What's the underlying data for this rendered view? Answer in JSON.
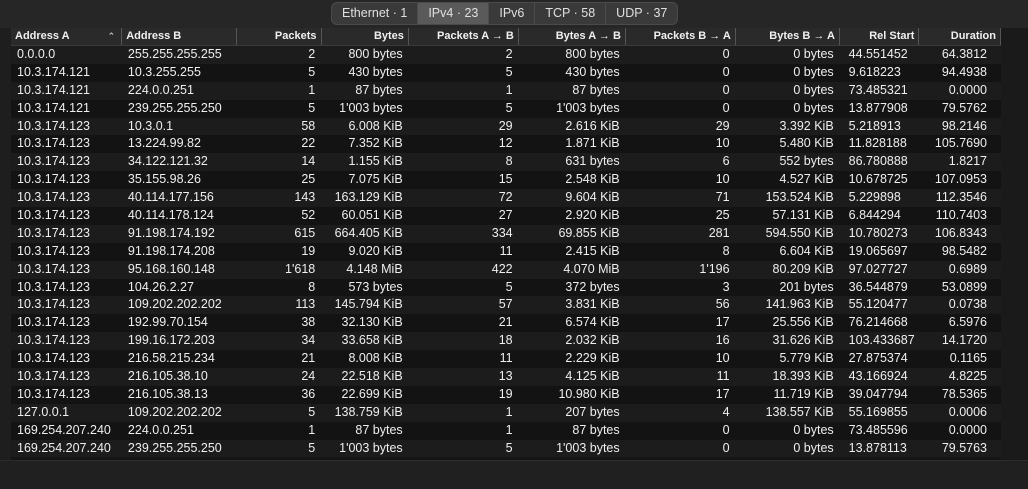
{
  "tabs": [
    {
      "label": "Ethernet · 1",
      "active": false
    },
    {
      "label": "IPv4 · 23",
      "active": true
    },
    {
      "label": "IPv6",
      "active": false
    },
    {
      "label": "TCP · 58",
      "active": false
    },
    {
      "label": "UDP · 37",
      "active": false
    }
  ],
  "sort_indicator": "⌃",
  "columns": [
    "Address A",
    "Address B",
    "Packets",
    "Bytes",
    "Packets A → B",
    "Bytes A → B",
    "Packets B → A",
    "Bytes B → A",
    "Rel Start",
    "Duration"
  ],
  "rows": [
    [
      "0.0.0.0",
      "255.255.255.255",
      "2",
      "800 bytes",
      "2",
      "800 bytes",
      "0",
      "0 bytes",
      "44.551452",
      "64.3812"
    ],
    [
      "10.3.174.121",
      "10.3.255.255",
      "5",
      "430 bytes",
      "5",
      "430 bytes",
      "0",
      "0 bytes",
      "9.618223",
      "94.4938"
    ],
    [
      "10.3.174.121",
      "224.0.0.251",
      "1",
      "87 bytes",
      "1",
      "87 bytes",
      "0",
      "0 bytes",
      "73.485321",
      "0.0000"
    ],
    [
      "10.3.174.121",
      "239.255.255.250",
      "5",
      "1'003 bytes",
      "5",
      "1'003 bytes",
      "0",
      "0 bytes",
      "13.877908",
      "79.5762"
    ],
    [
      "10.3.174.123",
      "10.3.0.1",
      "58",
      "6.008 KiB",
      "29",
      "2.616 KiB",
      "29",
      "3.392 KiB",
      "5.218913",
      "98.2146"
    ],
    [
      "10.3.174.123",
      "13.224.99.82",
      "22",
      "7.352 KiB",
      "12",
      "1.871 KiB",
      "10",
      "5.480 KiB",
      "11.828188",
      "105.7690"
    ],
    [
      "10.3.174.123",
      "34.122.121.32",
      "14",
      "1.155 KiB",
      "8",
      "631 bytes",
      "6",
      "552 bytes",
      "86.780888",
      "1.8217"
    ],
    [
      "10.3.174.123",
      "35.155.98.26",
      "25",
      "7.075 KiB",
      "15",
      "2.548 KiB",
      "10",
      "4.527 KiB",
      "10.678725",
      "107.0953"
    ],
    [
      "10.3.174.123",
      "40.114.177.156",
      "143",
      "163.129 KiB",
      "72",
      "9.604 KiB",
      "71",
      "153.524 KiB",
      "5.229898",
      "112.3546"
    ],
    [
      "10.3.174.123",
      "40.114.178.124",
      "52",
      "60.051 KiB",
      "27",
      "2.920 KiB",
      "25",
      "57.131 KiB",
      "6.844294",
      "110.7403"
    ],
    [
      "10.3.174.123",
      "91.198.174.192",
      "615",
      "664.405 KiB",
      "334",
      "69.855 KiB",
      "281",
      "594.550 KiB",
      "10.780273",
      "106.8343"
    ],
    [
      "10.3.174.123",
      "91.198.174.208",
      "19",
      "9.020 KiB",
      "11",
      "2.415 KiB",
      "8",
      "6.604 KiB",
      "19.065697",
      "98.5482"
    ],
    [
      "10.3.174.123",
      "95.168.160.148",
      "1'618",
      "4.148 MiB",
      "422",
      "4.070 MiB",
      "1'196",
      "80.209 KiB",
      "97.027727",
      "0.6989"
    ],
    [
      "10.3.174.123",
      "104.26.2.27",
      "8",
      "573 bytes",
      "5",
      "372 bytes",
      "3",
      "201 bytes",
      "36.544879",
      "53.0899"
    ],
    [
      "10.3.174.123",
      "109.202.202.202",
      "113",
      "145.794 KiB",
      "57",
      "3.831 KiB",
      "56",
      "141.963 KiB",
      "55.120477",
      "0.0738"
    ],
    [
      "10.3.174.123",
      "192.99.70.154",
      "38",
      "32.130 KiB",
      "21",
      "6.574 KiB",
      "17",
      "25.556 KiB",
      "76.214668",
      "6.5976"
    ],
    [
      "10.3.174.123",
      "199.16.172.203",
      "34",
      "33.658 KiB",
      "18",
      "2.032 KiB",
      "16",
      "31.626 KiB",
      "103.433687",
      "14.1720"
    ],
    [
      "10.3.174.123",
      "216.58.215.234",
      "21",
      "8.008 KiB",
      "11",
      "2.229 KiB",
      "10",
      "5.779 KiB",
      "27.875374",
      "0.1165"
    ],
    [
      "10.3.174.123",
      "216.105.38.10",
      "24",
      "22.518 KiB",
      "13",
      "4.125 KiB",
      "11",
      "18.393 KiB",
      "43.166924",
      "4.8225"
    ],
    [
      "10.3.174.123",
      "216.105.38.13",
      "36",
      "22.699 KiB",
      "19",
      "10.980 KiB",
      "17",
      "11.719 KiB",
      "39.047794",
      "78.5365"
    ],
    [
      "127.0.0.1",
      "109.202.202.202",
      "5",
      "138.759 KiB",
      "1",
      "207 bytes",
      "4",
      "138.557 KiB",
      "55.169855",
      "0.0006"
    ],
    [
      "169.254.207.240",
      "224.0.0.251",
      "1",
      "87 bytes",
      "1",
      "87 bytes",
      "0",
      "0 bytes",
      "73.485596",
      "0.0000"
    ],
    [
      "169.254.207.240",
      "239.255.255.250",
      "5",
      "1'003 bytes",
      "5",
      "1'003 bytes",
      "0",
      "0 bytes",
      "13.878113",
      "79.5763"
    ]
  ]
}
